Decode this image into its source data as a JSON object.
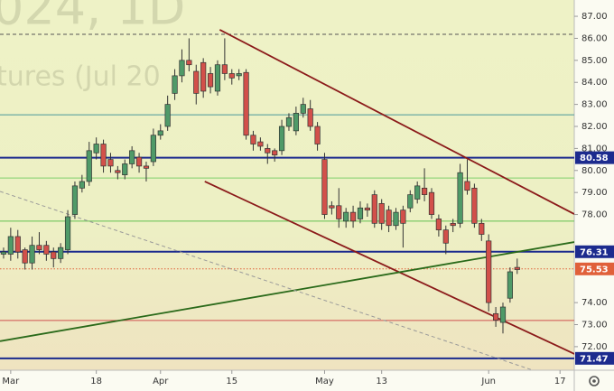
{
  "chart_data": {
    "type": "candlestick",
    "watermark": [
      "024, 1D",
      "tures (Jul 20"
    ],
    "x": [
      0,
      1,
      2,
      3,
      4,
      5,
      6,
      7,
      8,
      9,
      10,
      11,
      12,
      13,
      14,
      15,
      16,
      17,
      18,
      19,
      20,
      21,
      22,
      23,
      24,
      25,
      26,
      27,
      28,
      29,
      30,
      31,
      32,
      33,
      34,
      35,
      36,
      37,
      38,
      39,
      40,
      41,
      42,
      43,
      44,
      45,
      46,
      47,
      48,
      49,
      50,
      51,
      52,
      53,
      54,
      55,
      56,
      57,
      58,
      59,
      60,
      61,
      62,
      63,
      64,
      65,
      66,
      67,
      68,
      69,
      70,
      71,
      72
    ],
    "open": [
      76.2,
      76.2,
      77.0,
      76.4,
      75.8,
      76.6,
      76.6,
      76.3,
      76.0,
      76.4,
      78.0,
      79.2,
      79.5,
      80.8,
      81.2,
      80.5,
      80.0,
      79.8,
      80.3,
      80.6,
      80.2,
      80.4,
      81.6,
      82.0,
      83.5,
      84.3,
      85.0,
      84.5,
      84.9,
      84.4,
      83.6,
      84.8,
      84.4,
      84.3,
      84.45,
      81.6,
      81.3,
      81.0,
      80.9,
      80.9,
      82.0,
      81.8,
      82.6,
      82.8,
      82.0,
      80.5,
      78.4,
      78.4,
      77.7,
      78.1,
      77.8,
      78.3,
      78.9,
      78.5,
      78.2,
      77.5,
      78.2,
      78.3,
      78.7,
      79.2,
      79.0,
      77.8,
      77.3,
      77.6,
      77.6,
      79.5,
      79.2,
      77.6,
      76.8,
      73.5,
      73.1,
      74.2,
      75.6
    ],
    "high": [
      76.5,
      77.4,
      77.3,
      76.5,
      77.0,
      77.2,
      76.8,
      76.5,
      76.7,
      78.2,
      79.5,
      79.8,
      81.3,
      81.5,
      81.4,
      80.8,
      80.2,
      80.5,
      81.1,
      80.8,
      80.4,
      81.9,
      82.1,
      83.4,
      84.6,
      85.5,
      86.0,
      84.8,
      85.1,
      84.7,
      85.0,
      86.0,
      84.6,
      84.6,
      84.6,
      81.8,
      81.5,
      81.2,
      81.0,
      82.3,
      82.6,
      82.9,
      83.3,
      83.2,
      82.2,
      80.8,
      78.6,
      79.2,
      78.3,
      78.4,
      78.6,
      78.5,
      79.1,
      78.7,
      78.4,
      78.3,
      78.4,
      79.1,
      79.5,
      80.1,
      79.2,
      78.0,
      77.5,
      77.8,
      80.3,
      80.5,
      79.4,
      77.8,
      77.1,
      73.8,
      74.0,
      75.6,
      76.0
    ],
    "low": [
      76.0,
      75.9,
      76.0,
      75.5,
      75.5,
      76.2,
      75.9,
      75.6,
      75.8,
      76.2,
      77.8,
      79.0,
      79.3,
      80.5,
      79.9,
      79.9,
      79.6,
      79.6,
      80.1,
      79.9,
      79.5,
      80.2,
      81.4,
      81.8,
      83.2,
      84.0,
      84.5,
      83.0,
      83.3,
      83.5,
      83.4,
      84.1,
      83.9,
      84.1,
      81.4,
      80.9,
      80.9,
      80.3,
      80.4,
      80.7,
      81.8,
      81.6,
      82.4,
      81.8,
      80.9,
      77.8,
      78.0,
      77.4,
      77.4,
      77.4,
      77.6,
      77.9,
      77.4,
      77.3,
      77.2,
      77.3,
      76.5,
      78.1,
      78.5,
      78.6,
      77.8,
      77.0,
      76.2,
      77.2,
      77.4,
      78.9,
      77.4,
      76.8,
      73.6,
      72.9,
      72.6,
      74.0,
      75.3
    ],
    "close": [
      76.3,
      77.0,
      76.3,
      75.8,
      76.6,
      76.4,
      76.2,
      76.0,
      76.5,
      77.9,
      79.3,
      79.5,
      80.9,
      81.2,
      80.2,
      80.2,
      79.9,
      80.3,
      80.9,
      80.2,
      80.1,
      81.6,
      81.8,
      83.0,
      84.3,
      85.0,
      84.8,
      83.5,
      83.6,
      83.8,
      84.8,
      84.4,
      84.2,
      84.4,
      81.6,
      81.2,
      81.1,
      80.8,
      80.7,
      82.0,
      82.4,
      82.6,
      83.0,
      82.0,
      81.2,
      78.0,
      78.3,
      77.8,
      78.1,
      77.7,
      78.3,
      78.2,
      77.6,
      77.6,
      77.5,
      78.1,
      77.6,
      78.9,
      79.3,
      78.9,
      78.0,
      77.3,
      76.7,
      77.5,
      79.9,
      79.1,
      77.6,
      77.1,
      74.0,
      73.2,
      73.8,
      75.4,
      75.5
    ],
    "up_color": "#4f9a68",
    "down_color": "#d2504a",
    "xlim": [
      -0.5,
      80
    ],
    "ylim": [
      70.93,
      87.74
    ],
    "xticks": [
      {
        "value": 1,
        "label": "Mar"
      },
      {
        "value": 13,
        "label": "18"
      },
      {
        "value": 22,
        "label": "Apr"
      },
      {
        "value": 32,
        "label": "15"
      },
      {
        "value": 45,
        "label": "May"
      },
      {
        "value": 53,
        "label": "13"
      },
      {
        "value": 68,
        "label": "Jun"
      },
      {
        "value": 78,
        "label": "17"
      }
    ],
    "yticks": [
      {
        "value": 87,
        "label": "87.00"
      },
      {
        "value": 86,
        "label": "86.00"
      },
      {
        "value": 85,
        "label": "85.00"
      },
      {
        "value": 84,
        "label": "84.00"
      },
      {
        "value": 83,
        "label": "83.00"
      },
      {
        "value": 82,
        "label": "82.00"
      },
      {
        "value": 81,
        "label": "81.00"
      },
      {
        "value": 80,
        "label": "80.00"
      },
      {
        "value": 79,
        "label": "79.00"
      },
      {
        "value": 78,
        "label": "78.00"
      },
      {
        "value": 74,
        "label": "74.00"
      },
      {
        "value": 73,
        "label": "73.00"
      },
      {
        "value": 72,
        "label": "72.00"
      }
    ],
    "levels": [
      {
        "value": 86.18,
        "color": "#555555",
        "style": "dashed"
      },
      {
        "value": 82.53,
        "color": "#4a9a9a",
        "style": "solid"
      },
      {
        "value": 80.58,
        "color": "#1c2b8e",
        "style": "thick",
        "show_label": true
      },
      {
        "value": 79.66,
        "color": "#7fd06a",
        "style": "solid"
      },
      {
        "value": 77.7,
        "color": "#62c050",
        "style": "solid"
      },
      {
        "value": 76.31,
        "color": "#1c2b8e",
        "style": "thick",
        "show_label": true
      },
      {
        "value": 75.53,
        "color": "#e0603a",
        "style": "dotted",
        "show_label": true
      },
      {
        "value": 73.19,
        "color": "#d05050",
        "style": "solid"
      },
      {
        "value": 71.47,
        "color": "#1c2b8e",
        "style": "thick",
        "show_label": true
      }
    ],
    "trendlines": [
      {
        "x": [
          30.3,
          80
        ],
        "y": [
          86.39,
          78.02
        ],
        "color": "#8b1a1a",
        "style": "solid"
      },
      {
        "x": [
          28.2,
          80.3
        ],
        "y": [
          79.5,
          71.63
        ],
        "color": "#8b1a1a",
        "style": "solid"
      },
      {
        "x": [
          -0.5,
          80
        ],
        "y": [
          72.25,
          76.75
        ],
        "color": "#2a6a1a",
        "style": "solid"
      },
      {
        "x": [
          -0.5,
          74.2
        ],
        "y": [
          79.05,
          70.93
        ],
        "color": "#999999",
        "style": "dashed"
      }
    ]
  }
}
